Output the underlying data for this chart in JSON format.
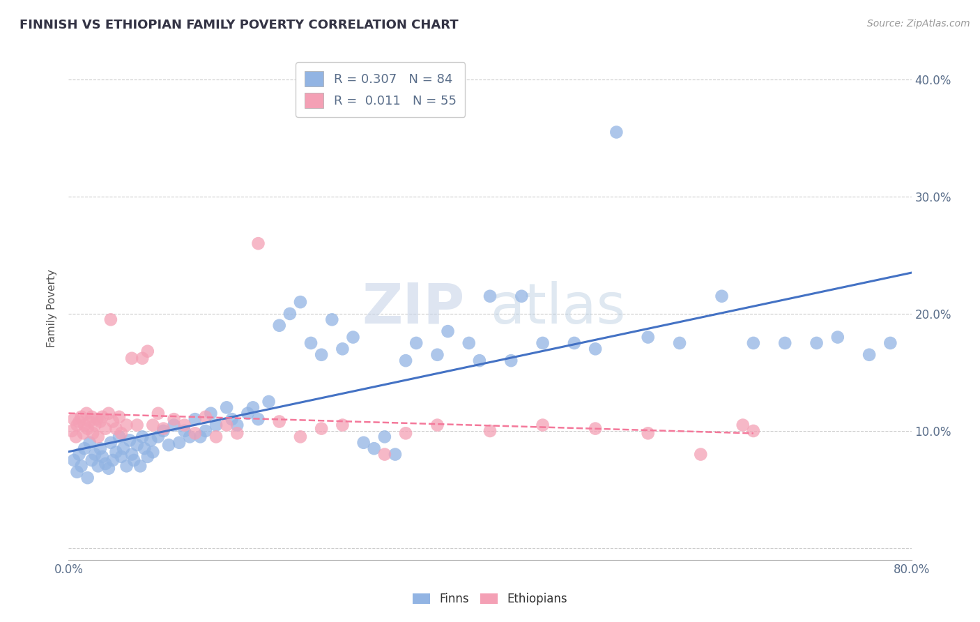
{
  "title": "FINNISH VS ETHIOPIAN FAMILY POVERTY CORRELATION CHART",
  "source": "Source: ZipAtlas.com",
  "ylabel": "Family Poverty",
  "xlim": [
    0.0,
    0.8
  ],
  "ylim": [
    -0.01,
    0.42
  ],
  "legend_r_finn": "0.307",
  "legend_n_finn": "84",
  "legend_r_eth": "0.011",
  "legend_n_eth": "55",
  "finn_color": "#92b4e3",
  "eth_color": "#f4a0b5",
  "finn_line_color": "#4472c4",
  "eth_line_color": "#f4789a",
  "axis_color": "#5a6e8a",
  "background_color": "#ffffff",
  "watermark_zip": "ZIP",
  "watermark_atlas": "atlas",
  "finns_x": [
    0.005,
    0.008,
    0.01,
    0.012,
    0.015,
    0.018,
    0.02,
    0.022,
    0.025,
    0.028,
    0.03,
    0.032,
    0.035,
    0.038,
    0.04,
    0.042,
    0.045,
    0.048,
    0.05,
    0.052,
    0.055,
    0.058,
    0.06,
    0.062,
    0.065,
    0.068,
    0.07,
    0.072,
    0.075,
    0.078,
    0.08,
    0.085,
    0.09,
    0.095,
    0.1,
    0.105,
    0.11,
    0.115,
    0.12,
    0.125,
    0.13,
    0.135,
    0.14,
    0.15,
    0.155,
    0.16,
    0.17,
    0.175,
    0.18,
    0.19,
    0.2,
    0.21,
    0.22,
    0.23,
    0.24,
    0.25,
    0.26,
    0.27,
    0.28,
    0.29,
    0.3,
    0.31,
    0.32,
    0.33,
    0.35,
    0.36,
    0.38,
    0.39,
    0.4,
    0.42,
    0.43,
    0.45,
    0.48,
    0.5,
    0.52,
    0.55,
    0.58,
    0.62,
    0.65,
    0.68,
    0.71,
    0.73,
    0.76,
    0.78
  ],
  "finns_y": [
    0.075,
    0.065,
    0.08,
    0.07,
    0.085,
    0.06,
    0.09,
    0.075,
    0.08,
    0.07,
    0.085,
    0.078,
    0.072,
    0.068,
    0.09,
    0.075,
    0.082,
    0.095,
    0.078,
    0.085,
    0.07,
    0.092,
    0.08,
    0.075,
    0.088,
    0.07,
    0.095,
    0.085,
    0.078,
    0.092,
    0.082,
    0.095,
    0.1,
    0.088,
    0.105,
    0.09,
    0.1,
    0.095,
    0.11,
    0.095,
    0.1,
    0.115,
    0.105,
    0.12,
    0.11,
    0.105,
    0.115,
    0.12,
    0.11,
    0.125,
    0.19,
    0.2,
    0.21,
    0.175,
    0.165,
    0.195,
    0.17,
    0.18,
    0.09,
    0.085,
    0.095,
    0.08,
    0.16,
    0.175,
    0.165,
    0.185,
    0.175,
    0.16,
    0.215,
    0.16,
    0.215,
    0.175,
    0.175,
    0.17,
    0.355,
    0.18,
    0.175,
    0.215,
    0.175,
    0.175,
    0.175,
    0.18,
    0.165,
    0.175
  ],
  "ethiopians_x": [
    0.003,
    0.005,
    0.007,
    0.008,
    0.01,
    0.012,
    0.014,
    0.015,
    0.017,
    0.018,
    0.02,
    0.022,
    0.023,
    0.025,
    0.027,
    0.028,
    0.03,
    0.032,
    0.035,
    0.038,
    0.04,
    0.042,
    0.045,
    0.048,
    0.05,
    0.055,
    0.06,
    0.065,
    0.07,
    0.075,
    0.08,
    0.085,
    0.09,
    0.1,
    0.11,
    0.12,
    0.13,
    0.14,
    0.15,
    0.16,
    0.18,
    0.2,
    0.22,
    0.24,
    0.26,
    0.3,
    0.32,
    0.35,
    0.4,
    0.45,
    0.5,
    0.55,
    0.6,
    0.64,
    0.65
  ],
  "ethiopians_y": [
    0.1,
    0.11,
    0.095,
    0.105,
    0.108,
    0.112,
    0.098,
    0.105,
    0.115,
    0.102,
    0.108,
    0.112,
    0.098,
    0.105,
    0.11,
    0.095,
    0.108,
    0.112,
    0.102,
    0.115,
    0.195,
    0.108,
    0.102,
    0.112,
    0.098,
    0.105,
    0.162,
    0.105,
    0.162,
    0.168,
    0.105,
    0.115,
    0.102,
    0.11,
    0.105,
    0.098,
    0.112,
    0.095,
    0.105,
    0.098,
    0.26,
    0.108,
    0.095,
    0.102,
    0.105,
    0.08,
    0.098,
    0.105,
    0.1,
    0.105,
    0.102,
    0.098,
    0.08,
    0.105,
    0.1
  ]
}
